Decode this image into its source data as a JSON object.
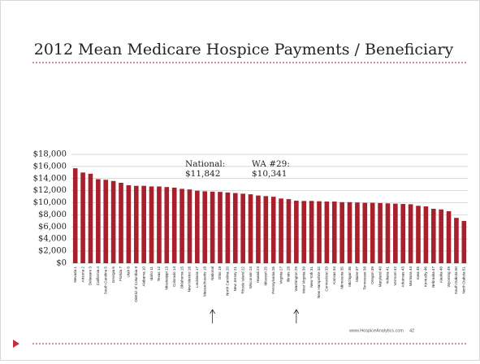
{
  "chart_data": {
    "type": "bar",
    "title": "2012 Mean Medicare Hospice Payments / Beneficiary",
    "categories": [
      "Nevada 1",
      "Arizona 2",
      "Delaware 3",
      "California 4",
      "South Carolina 5",
      "Georgia 6",
      "Florida 7",
      "Utah 8",
      "District of Columbia 9",
      "Alabama 10",
      "Idaho 11",
      "Texas 12",
      "Mississippi 13",
      "Colorado 14",
      "Oklahoma 15",
      "New Mexico 16",
      "Louisiana 17",
      "Massachusetts 18",
      "National",
      "Ohio 19",
      "North Carolina 20",
      "New Jersey 21",
      "Rhode Island 22",
      "Wisconsin 23",
      "Hawaii 24",
      "Missouri 25",
      "Pennsylvania 26",
      "Virginia 27",
      "Illinois 28",
      "Washington 29",
      "West Virginia 30",
      "New York 31",
      "New Hampshire 32",
      "Connecticut 33",
      "Kansas 34",
      "Minnesota 35",
      "Michigan 36",
      "Maine 37",
      "Tennessee 38",
      "Oregon 39",
      "Maryland 40",
      "Indiana 41",
      "Vermont 42",
      "Arkansas 43",
      "Montana 44",
      "Iowa 45",
      "Kentucky 46",
      "Nebraska 47",
      "Alaska 48",
      "Wyoming 49",
      "South Dakota 50",
      "North Dakota 51"
    ],
    "values": [
      15700,
      15000,
      14800,
      13900,
      13800,
      13600,
      13300,
      12900,
      12800,
      12800,
      12700,
      12700,
      12600,
      12500,
      12300,
      12200,
      12000,
      11900,
      11842,
      11800,
      11700,
      11600,
      11500,
      11400,
      11200,
      11100,
      11000,
      10700,
      10600,
      10341,
      10300,
      10300,
      10250,
      10200,
      10200,
      10100,
      10100,
      10050,
      10000,
      10000,
      9950,
      9900,
      9850,
      9800,
      9750,
      9500,
      9400,
      9000,
      8900,
      8600,
      7500,
      7000
    ],
    "color": "#a8202c",
    "ylim": [
      0,
      18000
    ],
    "yticks": [
      {
        "value": 0,
        "label": "$0"
      },
      {
        "value": 2000,
        "label": "$2,000"
      },
      {
        "value": 4000,
        "label": "$4,000"
      },
      {
        "value": 6000,
        "label": "$6,000"
      },
      {
        "value": 8000,
        "label": "$8,000"
      },
      {
        "value": 10000,
        "label": "$10,000"
      },
      {
        "value": 12000,
        "label": "$12,000"
      },
      {
        "value": 14000,
        "label": "$14,000"
      },
      {
        "value": 16000,
        "label": "$16,000"
      },
      {
        "value": 18000,
        "label": "$18,000"
      }
    ],
    "grid": true,
    "annotations": [
      [
        "National:",
        "$11,842"
      ],
      [
        "WA #29:",
        "$10,341"
      ]
    ]
  },
  "footer": {
    "url": "www.HospiceAnalytics.com",
    "page": "42"
  }
}
